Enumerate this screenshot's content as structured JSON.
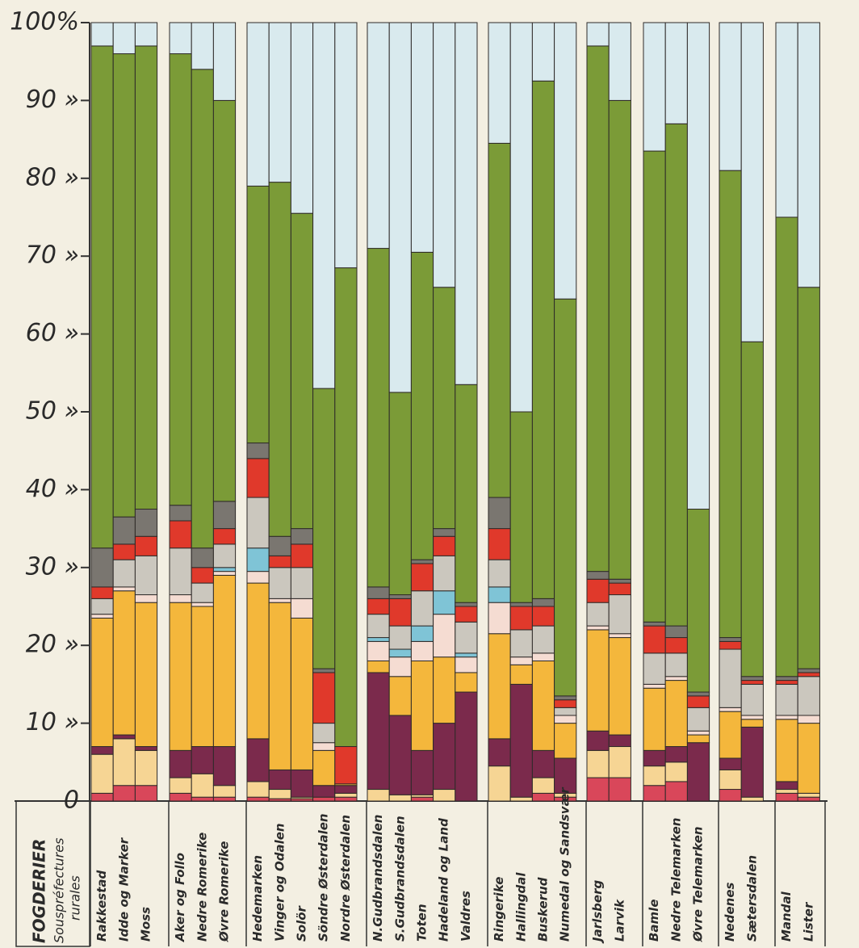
{
  "chart_data": {
    "type": "stacked_bar",
    "xlabel": "FOGDERIER",
    "xlabel_sub": [
      "Souspréfectures",
      "rurales"
    ],
    "ylim": [
      0,
      100
    ],
    "yticks": [
      0,
      {
        "value": 10,
        "label": "10 »"
      },
      {
        "value": 20,
        "label": "20 »"
      },
      {
        "value": 30,
        "label": "30 »"
      },
      {
        "value": 40,
        "label": "40 »"
      },
      {
        "value": 50,
        "label": "50 »"
      },
      {
        "value": 60,
        "label": "60 »"
      },
      {
        "value": 70,
        "label": "70 »"
      },
      {
        "value": 80,
        "label": "80 »"
      },
      {
        "value": 90,
        "label": "90 »"
      },
      {
        "value": 100,
        "label": "100%"
      }
    ],
    "categories": [
      "Rakkestad",
      "Idde og Marker",
      "Moss",
      "Aker og Follo",
      "Nedre Romerike",
      "Øvre Romerike",
      "Hedemarken",
      "Vinger og Odalen",
      "Solör",
      "Söndre Østerdalen",
      "Nordre Østerdalen",
      "N.Gudbrandsdalen",
      "S.Gudbrandsdalen",
      "Toten",
      "Hadeland og Land",
      "Valdres",
      "Ringerike",
      "Hallingdal",
      "Buskerud",
      "Numedal og Sandsvær",
      "Jarlsberg",
      "Larvik",
      "Bamle",
      "Nedre Telemarken",
      "Øvre Telemarken",
      "Nedenes",
      "Sætersdalen",
      "Mandal",
      "Lister"
    ],
    "series": [
      {
        "color": "#d9475a",
        "values": [
          1,
          2,
          2,
          1,
          0.5,
          0.5,
          0.5,
          0.3,
          0.3,
          0.5,
          0.5,
          0,
          0,
          0.5,
          0,
          0,
          0,
          0,
          1,
          0.5,
          3,
          3,
          2,
          2.5,
          0,
          1.5,
          0,
          1,
          0.5
        ]
      },
      {
        "color": "#f6d594",
        "values": [
          5,
          6,
          4.5,
          2,
          3,
          1.5,
          2,
          1.2,
          0.2,
          0,
          0.5,
          1.5,
          0.8,
          0.3,
          1.5,
          0,
          4.5,
          0.5,
          2,
          0.5,
          3.5,
          4,
          2.5,
          2.5,
          0,
          2.5,
          0.5,
          0.5,
          0.5
        ]
      },
      {
        "color": "#7b2a4c",
        "values": [
          1,
          0.5,
          0.5,
          3.5,
          3.5,
          5,
          5.5,
          2.5,
          3.5,
          1.5,
          1,
          15,
          10.2,
          5.7,
          8.5,
          14,
          3.5,
          14.5,
          3.5,
          4.5,
          2.5,
          1.5,
          2,
          2,
          7.5,
          1.5,
          9,
          1,
          0
        ]
      },
      {
        "color": "#f4b73c",
        "values": [
          16.5,
          18.5,
          18.5,
          19,
          18,
          22,
          20,
          21.5,
          19.5,
          4.5,
          0.2,
          1.5,
          5,
          11.5,
          8.5,
          2.5,
          13.5,
          2.5,
          11.5,
          4.5,
          13,
          12.5,
          8,
          8.5,
          1,
          6,
          1,
          8,
          9
        ]
      },
      {
        "color": "#f5dcd2",
        "values": [
          0.5,
          0.5,
          1,
          1,
          0.5,
          0.5,
          1.5,
          0.5,
          2.5,
          1,
          0,
          2.5,
          2.5,
          2.5,
          5.5,
          2,
          4,
          1,
          1,
          1,
          0.5,
          0.5,
          0.5,
          0.5,
          0.5,
          0.5,
          0.5,
          0.5,
          1
        ]
      },
      {
        "color": "#7fc4d6",
        "values": [
          0,
          0,
          0,
          0,
          0,
          0.5,
          3,
          0,
          0,
          0,
          0,
          0.5,
          1,
          2,
          3,
          0.5,
          2,
          0,
          0,
          0,
          0,
          0,
          0,
          0,
          0,
          0,
          0,
          0,
          0
        ]
      },
      {
        "color": "#cbc7be",
        "values": [
          2,
          3.5,
          5,
          6,
          2.5,
          3,
          6.5,
          4,
          4,
          2.5,
          0,
          3,
          3,
          4.5,
          4.5,
          4,
          3.5,
          3.5,
          3.5,
          1,
          3,
          5,
          4,
          3,
          3,
          7.5,
          4,
          4,
          5
        ]
      },
      {
        "color": "#e0392b",
        "values": [
          1.5,
          2,
          2.5,
          3.5,
          2,
          2,
          5,
          1.5,
          3,
          6.5,
          4.8,
          2,
          3.5,
          3.5,
          2.5,
          2,
          4,
          3,
          2.5,
          1,
          3,
          1.5,
          3.5,
          2,
          1.5,
          1,
          0.5,
          0.5,
          0.5
        ]
      },
      {
        "color": "#7a7670",
        "values": [
          5,
          3.5,
          3.5,
          2,
          2.5,
          3.5,
          2,
          2.5,
          2,
          0.5,
          0,
          1.5,
          0.5,
          0.5,
          1,
          0.5,
          4,
          0.5,
          1,
          0.5,
          1,
          0.5,
          0.5,
          1.5,
          0.5,
          0.5,
          0.5,
          0.5,
          0.5
        ]
      },
      {
        "color": "#7b9b37",
        "values": [
          64.5,
          59.5,
          59.5,
          58,
          61.5,
          51.5,
          33,
          45.5,
          40.5,
          36,
          61.5,
          43.5,
          26,
          39.5,
          31,
          28,
          45.5,
          24.5,
          66.5,
          51,
          67.5,
          61.5,
          60.5,
          64.5,
          23.5,
          60,
          43,
          59,
          49
        ]
      },
      {
        "color": "#d9eaee",
        "values": [
          3,
          4,
          3,
          4,
          6,
          10,
          21,
          20.5,
          24.5,
          47,
          31.5,
          29,
          47.5,
          29.5,
          34,
          46.5,
          15.5,
          50,
          7.5,
          35.5,
          3,
          10,
          16.5,
          13,
          62.5,
          19,
          41,
          25,
          34
        ]
      }
    ]
  }
}
